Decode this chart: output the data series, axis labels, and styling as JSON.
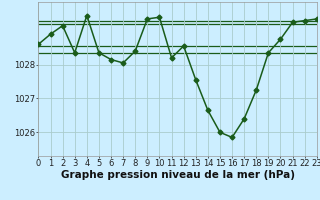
{
  "x": [
    0,
    1,
    2,
    3,
    4,
    5,
    6,
    7,
    8,
    9,
    10,
    11,
    12,
    13,
    14,
    15,
    16,
    17,
    18,
    19,
    20,
    21,
    22,
    23
  ],
  "y": [
    1028.6,
    1028.9,
    1029.15,
    1028.35,
    1029.45,
    1028.35,
    1028.15,
    1028.05,
    1028.4,
    1029.35,
    1029.4,
    1028.2,
    1028.55,
    1027.55,
    1026.65,
    1026.0,
    1025.85,
    1026.4,
    1027.25,
    1028.35,
    1028.75,
    1029.25,
    1029.3,
    1029.35
  ],
  "line_color": "#1a5c1a",
  "marker_color": "#1a5c1a",
  "bg_color": "#cceeff",
  "grid_color": "#aacccc",
  "xlabel": "Graphe pression niveau de la mer (hPa)",
  "xtick_labels": [
    "0",
    "1",
    "2",
    "3",
    "4",
    "5",
    "6",
    "7",
    "8",
    "9",
    "10",
    "11",
    "12",
    "13",
    "14",
    "15",
    "16",
    "17",
    "18",
    "19",
    "20",
    "21",
    "22",
    "23"
  ],
  "ytick_vals": [
    1026,
    1027,
    1028
  ],
  "ytick_labels": [
    "1026",
    "1027",
    "1028"
  ],
  "ylim": [
    1025.3,
    1029.85
  ],
  "xlim": [
    0,
    23
  ],
  "ref_lines": [
    1028.35,
    1028.55,
    1029.2,
    1029.3
  ],
  "xlabel_fontsize": 7.5,
  "tick_fontsize": 6.0,
  "linewidth": 1.1,
  "markersize": 2.5,
  "ref_linewidth": 0.9
}
